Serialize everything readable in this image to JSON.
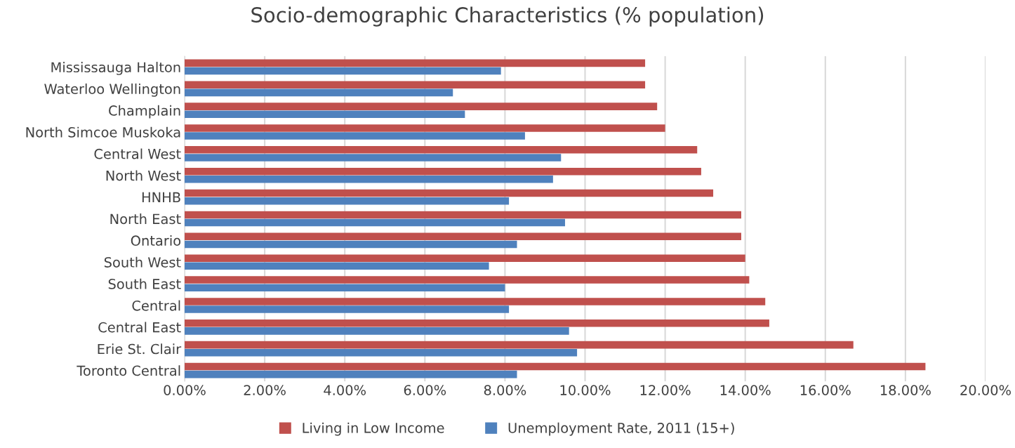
{
  "chart_data": {
    "type": "bar",
    "orientation": "horizontal",
    "title": "Socio-demographic Characteristics (% population)",
    "categories": [
      "Mississauga Halton",
      "Waterloo Wellington",
      "Champlain",
      "North Simcoe Muskoka",
      "Central West",
      "North West",
      "HNHB",
      "North East",
      "Ontario",
      "South West",
      "South East",
      "Central",
      "Central East",
      "Erie St. Clair",
      "Toronto Central"
    ],
    "series": [
      {
        "name": "Living in Low Income",
        "color": "#c0504d",
        "values": [
          11.5,
          11.5,
          11.8,
          12.0,
          12.8,
          12.9,
          13.2,
          13.9,
          13.9,
          14.0,
          14.1,
          14.5,
          14.6,
          16.7,
          18.5
        ]
      },
      {
        "name": "Unemployment Rate, 2011 (15+)",
        "color": "#4f81bd",
        "values": [
          7.9,
          6.7,
          7.0,
          8.5,
          9.4,
          9.2,
          8.1,
          9.5,
          8.3,
          7.6,
          8.0,
          8.1,
          9.6,
          9.8,
          8.3
        ]
      }
    ],
    "xlim": [
      0,
      20
    ],
    "xticks": [
      {
        "value": 0,
        "label": "0.00%"
      },
      {
        "value": 2,
        "label": "2.00%"
      },
      {
        "value": 4,
        "label": "4.00%"
      },
      {
        "value": 6,
        "label": "6.00%"
      },
      {
        "value": 8,
        "label": "8.00%"
      },
      {
        "value": 10,
        "label": "10.00%"
      },
      {
        "value": 12,
        "label": "12.00%"
      },
      {
        "value": 14,
        "label": "14.00%"
      },
      {
        "value": 16,
        "label": "16.00%"
      },
      {
        "value": 18,
        "label": "18.00%"
      },
      {
        "value": 20,
        "label": "20.00%"
      }
    ],
    "grid": "x",
    "legend": "bottom"
  }
}
